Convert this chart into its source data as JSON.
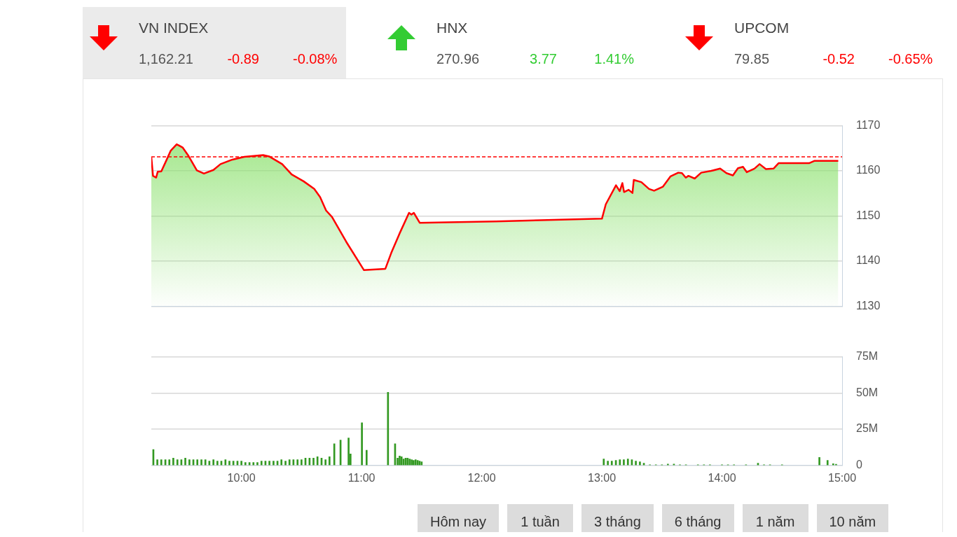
{
  "chart_data": [
    {
      "type": "other",
      "annotations": [
        "VN INDEX",
        "1,162.21",
        "-0.89",
        "-0.08%",
        "HNX",
        "270.96",
        "3.77",
        "1.41%",
        "UPCOM",
        "79.85",
        "-0.52",
        "-0.65%"
      ],
      "colors": [
        "#ff0000",
        "#33cc33",
        "#ff0000"
      ]
    },
    {
      "type": "area",
      "x": [
        9.25,
        9.264,
        9.29,
        9.303,
        9.333,
        9.373,
        9.412,
        9.461,
        9.51,
        9.56,
        9.629,
        9.688,
        9.767,
        9.826,
        9.925,
        10.024,
        10.181,
        10.231,
        10.339,
        10.418,
        10.517,
        10.606,
        10.655,
        10.705,
        10.754,
        10.872,
        11.02,
        11.198,
        11.247,
        11.316,
        11.395,
        11.415,
        11.435,
        11.484,
        12.116,
        13.001,
        13.033,
        13.118,
        13.149,
        13.171,
        13.185,
        13.223,
        13.255,
        13.266,
        13.329,
        13.393,
        13.435,
        13.509,
        13.572,
        13.636,
        13.667,
        13.699,
        13.721,
        13.773,
        13.827,
        13.911,
        13.985,
        14.037,
        14.091,
        14.133,
        14.175,
        14.207,
        14.27,
        14.313,
        14.366,
        14.429,
        14.471,
        14.725,
        14.768,
        14.968
      ],
      "series": [
        {
          "color": "#ff0000",
          "values": [
            1163.1,
            1158.9,
            1158.5,
            1159.8,
            1159.9,
            1162.2,
            1164.5,
            1165.9,
            1165.2,
            1163.3,
            1160.1,
            1159.4,
            1160.2,
            1161.5,
            1162.5,
            1163.1,
            1163.5,
            1163.2,
            1161.5,
            1159.2,
            1157.7,
            1156,
            1154.2,
            1151.2,
            1149.8,
            1144.3,
            1138,
            1138.3,
            1141.8,
            1146.1,
            1150.7,
            1150.3,
            1150.7,
            1148.5,
            1148.8,
            1149.4,
            1152.6,
            1156.8,
            1155.5,
            1157.3,
            1155.3,
            1155.8,
            1155.1,
            1158,
            1157.5,
            1156,
            1155.6,
            1156.5,
            1158.8,
            1159.6,
            1159.5,
            1158.5,
            1158.9,
            1158.3,
            1159.6,
            1160,
            1160.5,
            1159.5,
            1159,
            1160.6,
            1160.9,
            1159.7,
            1160.5,
            1161.5,
            1160.4,
            1160.5,
            1161.7,
            1161.7,
            1162.2,
            1162.2
          ]
        }
      ],
      "xlim": [
        9.25,
        15
      ],
      "ylim": [
        1130,
        1170
      ],
      "yticks": [
        1130,
        1140,
        1150,
        1160,
        1170
      ],
      "grid": "y",
      "tick_labels": "y",
      "ref_lines": [
        {
          "axis": "y",
          "value": 1163.1,
          "color": "#ff0000",
          "line_style": "dashed"
        }
      ]
    },
    {
      "type": "bar",
      "x": [
        9.267,
        9.3,
        9.333,
        9.367,
        9.4,
        9.433,
        9.467,
        9.5,
        9.533,
        9.567,
        9.6,
        9.633,
        9.667,
        9.7,
        9.733,
        9.767,
        9.8,
        9.833,
        9.867,
        9.9,
        9.933,
        9.967,
        10,
        10.033,
        10.067,
        10.1,
        10.133,
        10.167,
        10.2,
        10.233,
        10.267,
        10.3,
        10.333,
        10.367,
        10.4,
        10.433,
        10.467,
        10.5,
        10.533,
        10.567,
        10.6,
        10.633,
        10.667,
        10.7,
        10.733,
        10.773,
        10.825,
        10.892,
        10.908,
        11.003,
        11.042,
        11.22,
        11.279,
        11.3,
        11.317,
        11.333,
        11.35,
        11.367,
        11.383,
        11.4,
        11.417,
        11.433,
        11.45,
        11.467,
        11.483,
        11.5,
        13.016,
        13.05,
        13.083,
        13.117,
        13.15,
        13.183,
        13.217,
        13.25,
        13.283,
        13.317,
        13.35,
        13.4,
        13.45,
        13.5,
        13.55,
        13.6,
        13.65,
        13.7,
        13.8,
        13.85,
        13.9,
        14,
        14.05,
        14.1,
        14.2,
        14.3,
        14.35,
        14.4,
        14.5,
        14.811,
        14.879,
        14.926,
        14.95
      ],
      "series": [
        {
          "color": "#339922",
          "values": [
            11,
            4,
            4,
            4,
            4,
            5,
            4,
            4,
            5,
            4,
            4,
            4,
            4,
            4,
            3,
            4,
            3,
            3,
            4,
            3,
            3,
            3,
            3,
            2,
            2,
            2,
            2,
            3,
            3,
            3,
            3,
            3,
            4,
            3,
            4,
            4,
            4,
            4,
            5,
            5,
            5,
            6,
            5,
            4,
            6,
            15,
            17.5,
            19,
            8,
            29.5,
            10.5,
            50.5,
            15,
            5,
            6.5,
            6,
            4.5,
            5,
            5,
            4.5,
            4,
            3.5,
            4,
            3.5,
            3,
            2.5,
            4.5,
            3,
            3,
            3.5,
            4,
            4,
            4.5,
            4,
            3,
            2.5,
            1.5,
            0.5,
            0.5,
            0.5,
            1,
            1,
            0.5,
            0.5,
            0.5,
            0.5,
            0.5,
            0.5,
            0.5,
            0.5,
            0.5,
            1.5,
            0.5,
            0.5,
            0.5,
            5.5,
            3.5,
            1.2,
            0.8
          ]
        }
      ],
      "xlim": [
        9.25,
        15
      ],
      "xticks": [
        {
          "value": 10,
          "label": "10:00"
        },
        {
          "value": 11,
          "label": "11:00"
        },
        {
          "value": 12,
          "label": "12:00"
        },
        {
          "value": 13,
          "label": "13:00"
        },
        {
          "value": 14,
          "label": "14:00"
        },
        {
          "value": 15,
          "label": "15:00"
        }
      ],
      "ylim": [
        0,
        75
      ],
      "yticks": [
        0,
        {
          "value": 25,
          "label": "25M"
        },
        {
          "value": 50,
          "label": "50M"
        },
        {
          "value": 75,
          "label": "75M"
        }
      ],
      "grid": "y"
    },
    {
      "type": "other",
      "annotations": [
        "Hôm nay",
        "1 tuần",
        "3 tháng",
        "6 tháng",
        "1 năm",
        "10 năm"
      ]
    }
  ]
}
